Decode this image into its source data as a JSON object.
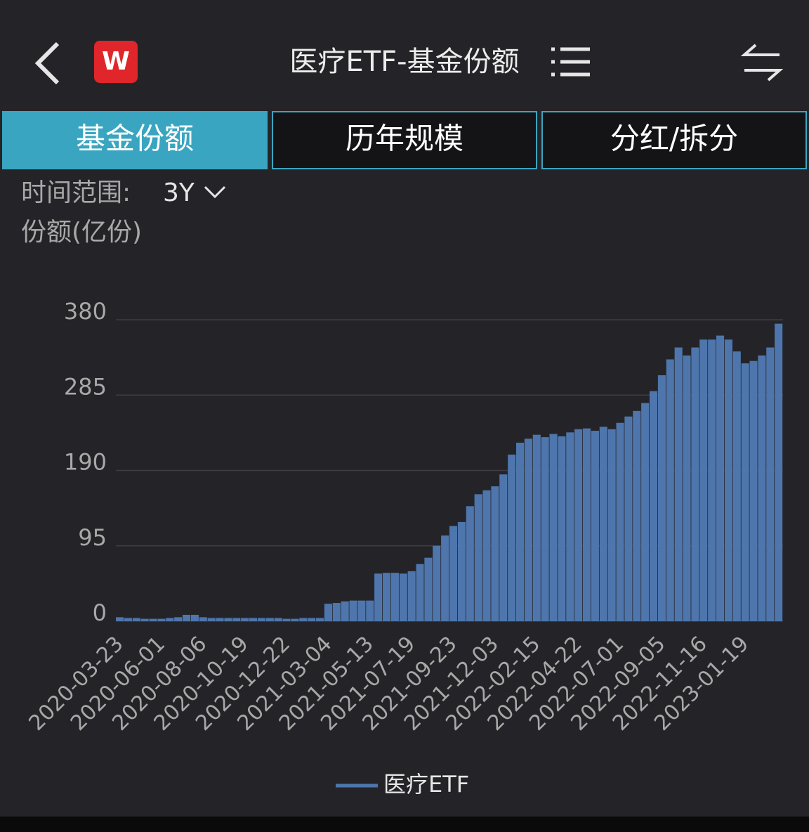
{
  "header": {
    "logo": "W",
    "title": "医疗ETF-基金份额"
  },
  "tabs": [
    "基金份额",
    "历年规模",
    "分红/拆分"
  ],
  "filter": {
    "label": "时间范围:",
    "value": "3Y"
  },
  "chart_data": {
    "type": "bar",
    "y_label": "份额(亿份)",
    "categories": [
      "2020-03-23",
      null,
      null,
      null,
      null,
      "2020-06-01",
      null,
      null,
      null,
      null,
      "2020-08-06",
      null,
      null,
      null,
      null,
      "2020-10-19",
      null,
      null,
      null,
      null,
      "2020-12-22",
      null,
      null,
      null,
      null,
      "2021-03-04",
      null,
      null,
      null,
      null,
      "2021-05-13",
      null,
      null,
      null,
      null,
      "2021-07-19",
      null,
      null,
      null,
      null,
      "2021-09-23",
      null,
      null,
      null,
      null,
      "2021-12-03",
      null,
      null,
      null,
      null,
      "2022-02-15",
      null,
      null,
      null,
      null,
      "2022-04-22",
      null,
      null,
      null,
      null,
      "2022-07-01",
      null,
      null,
      null,
      null,
      "2022-09-05",
      null,
      null,
      null,
      null,
      "2022-11-16",
      null,
      null,
      null,
      null,
      "2023-01-19",
      null,
      null,
      null,
      null
    ],
    "series": [
      {
        "name": "医疗ETF",
        "color": "#4e76ac",
        "values": [
          5,
          4,
          4,
          3,
          3,
          3,
          4,
          5,
          8,
          8,
          5,
          4,
          4,
          4,
          4,
          4,
          4,
          4,
          4,
          4,
          3,
          3,
          4,
          4,
          4,
          22,
          23,
          25,
          26,
          26,
          26,
          60,
          61,
          61,
          60,
          63,
          72,
          80,
          95,
          108,
          120,
          125,
          145,
          160,
          165,
          170,
          185,
          210,
          225,
          230,
          235,
          232,
          236,
          233,
          238,
          242,
          243,
          240,
          245,
          242,
          250,
          258,
          265,
          275,
          290,
          310,
          330,
          345,
          335,
          345,
          355,
          355,
          360,
          355,
          340,
          325,
          328,
          335,
          345,
          375
        ]
      }
    ],
    "ylim": [
      0,
      380
    ],
    "yticks": [
      0,
      95,
      190,
      285,
      380
    ],
    "grid": true
  }
}
